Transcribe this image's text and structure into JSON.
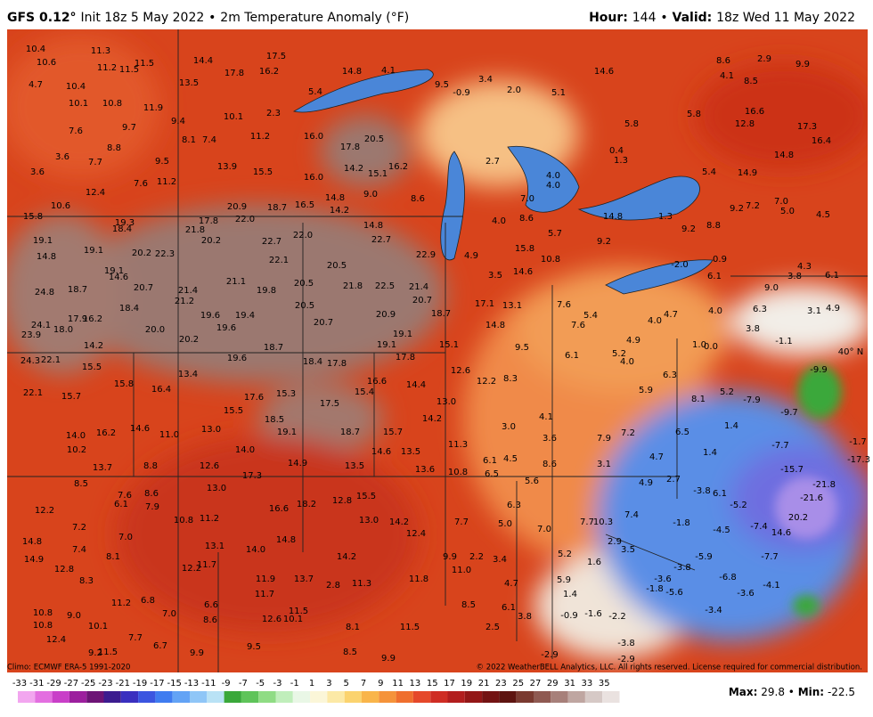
{
  "header": {
    "model": "GFS 0.12°",
    "init": "Init 18z 5 May 2022",
    "separator": "•",
    "field": "2m Temperature Anomaly (°F)",
    "hour_label": "Hour:",
    "hour": "144",
    "valid_label": "Valid:",
    "valid": "18z Wed 11 May 2022"
  },
  "map": {
    "latitude_label": "40° N",
    "values": [
      "10.4",
      "10.6",
      "4.7",
      "10.4",
      "10.1",
      "7.6",
      "3.6",
      "3.6",
      "7.7",
      "11.3",
      "11.2",
      "11.5",
      "11.5",
      "14.4",
      "13.5",
      "17.8",
      "16.2",
      "17.5",
      "14.8",
      "4.1",
      "9.5",
      "-0.9",
      "3.4",
      "2.0",
      "14.6",
      "8.6",
      "2.9",
      "9.9",
      "4.1",
      "8.5",
      "10.8",
      "11.9",
      "9.7",
      "9.4",
      "10.1",
      "2.3",
      "5.4",
      "8.8",
      "8.1",
      "7.4",
      "11.2",
      "16.0",
      "17.8",
      "20.5",
      "9.5",
      "13.9",
      "15.5",
      "14.2",
      "15.1",
      "16.2",
      "16.0",
      "7.6",
      "11.2",
      "12.4",
      "10.6",
      "20.9",
      "22.0",
      "18.7",
      "16.5",
      "14.2",
      "14.8",
      "9.0",
      "8.6",
      "15.8",
      "19.3",
      "17.8",
      "14.8",
      "21.8",
      "18.4",
      "19.1",
      "20.2",
      "22.7",
      "22.0",
      "22.7",
      "19.1",
      "20.2",
      "22.3",
      "22.1",
      "20.5",
      "22.9",
      "4.9",
      "14.8",
      "14.6",
      "19.1",
      "21.1",
      "21.8",
      "22.5",
      "21.4",
      "24.8",
      "18.7",
      "20.7",
      "21.4",
      "19.8",
      "20.5",
      "21.2",
      "20.7",
      "18.4",
      "20.5",
      "17.1",
      "13.1",
      "16.2",
      "17.9",
      "19.6",
      "19.4",
      "20.9",
      "18.7",
      "24.1",
      "18.0",
      "20.0",
      "19.6",
      "20.7",
      "14.8",
      "23.9",
      "20.2",
      "18.7",
      "19.1",
      "19.1",
      "15.1",
      "9.5",
      "14.2",
      "24.3",
      "22.1",
      "19.6",
      "18.4",
      "17.8",
      "17.8",
      "15.5",
      "13.4",
      "12.6",
      "15.8",
      "16.4",
      "16.6",
      "14.4",
      "12.2",
      "8.3",
      "22.1",
      "15.7",
      "17.6",
      "15.3",
      "15.4",
      "13.0",
      "15.5",
      "17.5",
      "14.2",
      "18.5",
      "19.1",
      "18.7",
      "15.7",
      "14.6",
      "11.0",
      "13.0",
      "14.0",
      "16.2",
      "10.2",
      "14.0",
      "14.6",
      "13.5",
      "11.3",
      "14.9",
      "13.5",
      "13.7",
      "8.8",
      "12.6",
      "17.3",
      "13.6",
      "10.8",
      "6.1",
      "4.5",
      "6.5",
      "8.5",
      "13.0",
      "8.6",
      "7.6",
      "6.1",
      "7.9",
      "16.6",
      "18.2",
      "12.8",
      "15.5",
      "12.2",
      "10.8",
      "11.2",
      "13.0",
      "14.2",
      "7.7",
      "5.0",
      "7.0",
      "7.2",
      "7.0",
      "13.1",
      "14.0",
      "14.8",
      "12.4",
      "14.8",
      "14.9",
      "7.4",
      "8.1",
      "11.7",
      "12.2",
      "11.9",
      "13.7",
      "14.2",
      "9.9",
      "2.2",
      "11.0",
      "3.4",
      "12.8",
      "8.3",
      "11.3",
      "2.8",
      "11.8",
      "4.7",
      "11.7",
      "11.2",
      "6.8",
      "7.0",
      "6.6",
      "8.6",
      "10.8",
      "9.0",
      "12.6",
      "10.1",
      "11.5",
      "8.5",
      "6.1",
      "3.8",
      "10.8",
      "12.4",
      "10.1",
      "7.7",
      "6.7",
      "9.9",
      "9.5",
      "8.1",
      "11.5",
      "2.5",
      "8.5",
      "9.9",
      "11.5",
      "9.2",
      "5.1",
      "5.8",
      "5.8",
      "12.8",
      "16.6",
      "17.3",
      "16.4",
      "14.8",
      "2.7",
      "4.0",
      "4.0",
      "7.0",
      "8.6",
      "4.0",
      "5.7",
      "9.2",
      "14.8",
      "1.3",
      "9.2",
      "8.8",
      "14.9",
      "5.4",
      "7.0",
      "5.0",
      "4.5",
      "9.2",
      "7.2",
      "1.3",
      "0.4",
      "15.8",
      "10.8",
      "14.6",
      "3.5",
      "-2.0",
      "4.3",
      "6.1",
      "3.8",
      "9.0",
      "6.1",
      "0.9",
      "7.6",
      "5.4",
      "7.6",
      "4.0",
      "4.7",
      "4.0",
      "6.3",
      "3.1",
      "4.9",
      "3.8",
      "-1.1",
      "6.1",
      "4.9",
      "5.2",
      "4.0",
      "1.0",
      "0.0",
      "6.3",
      "5.9",
      "8.1",
      "5.2",
      "-7.9",
      "-9.7",
      "-9.9",
      "4.1",
      "3.0",
      "3.6",
      "7.9",
      "7.2",
      "6.5",
      "1.4",
      "8.6",
      "3.1",
      "4.7",
      "1.4",
      "-7.7",
      "-1.7",
      "-17.3",
      "5.6",
      "4.9",
      "2.7",
      "-3.8",
      "6.1",
      "-5.2",
      "-15.7",
      "-21.8",
      "-21.6",
      "20.2",
      "-7.4",
      "14.6",
      "6.3",
      "7.7",
      "10.3",
      "7.4",
      "-1.8",
      "-4.5",
      "2.9",
      "5.2",
      "1.6",
      "3.5",
      "-5.9",
      "-7.7",
      "-3.8",
      "-6.8",
      "-3.6",
      "-4.1",
      "5.9",
      "-1.8",
      "-5.6",
      "-3.6",
      "1.4",
      "-0.9",
      "-1.6",
      "-2.2",
      "-3.4",
      "-2.9",
      "-3.8",
      "-2.9"
    ]
  },
  "footer": {
    "climo": "Climo: ECMWF ERA-5 1991-2020",
    "copyright": "© 2022 WeatherBELL Analytics, LLC. All rights reserved. License required for commercial distribution.",
    "max_label": "Max:",
    "max": "29.8",
    "separator": "•",
    "min_label": "Min:",
    "min": "-22.5"
  },
  "colorbar": {
    "ticks": [
      -33,
      -31,
      -29,
      -27,
      -25,
      -23,
      -21,
      -19,
      -17,
      -15,
      -13,
      -11,
      -9,
      -7,
      -5,
      -3,
      -1,
      1,
      3,
      5,
      7,
      9,
      11,
      13,
      15,
      17,
      19,
      21,
      23,
      25,
      27,
      29,
      31,
      33,
      35
    ],
    "colors": [
      "#f2a6ef",
      "#e36fe0",
      "#c93fc8",
      "#9c1f9e",
      "#6d1476",
      "#3c1c8f",
      "#3a2fbf",
      "#3b55e0",
      "#3f7cf0",
      "#63a3f5",
      "#8fc6f7",
      "#b9e2f5",
      "#3aa83a",
      "#5fc45a",
      "#8fdc84",
      "#c0eebb",
      "#e9f7e6",
      "#fbf6d8",
      "#fce9a6",
      "#fbd36f",
      "#f9b54a",
      "#f5933a",
      "#ef6f2e",
      "#e5482a",
      "#cf2d24",
      "#b21e1e",
      "#931717",
      "#731313",
      "#5e1410",
      "#7a3a30",
      "#8f5a52",
      "#a7807a",
      "#bfa6a1",
      "#d6c9c6",
      "#eae2e0"
    ]
  }
}
